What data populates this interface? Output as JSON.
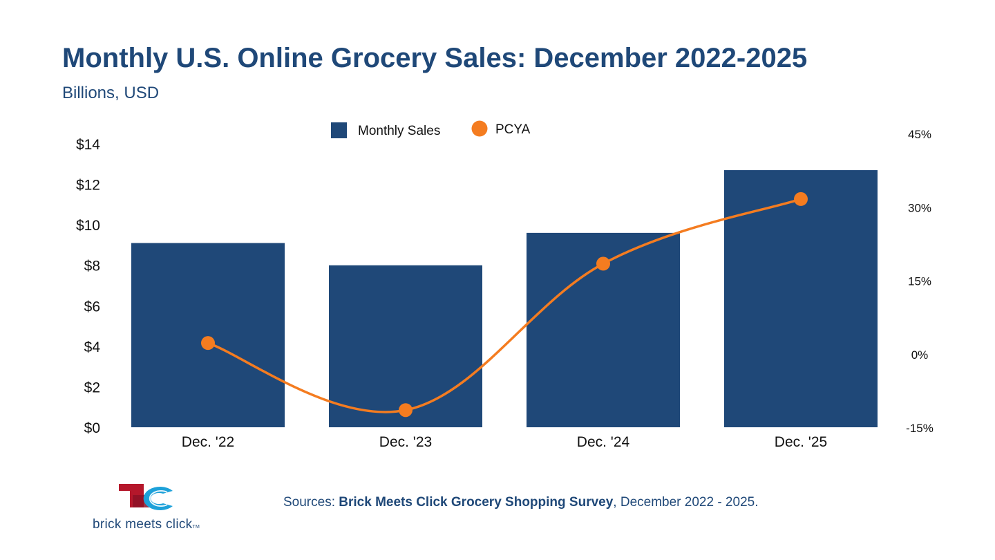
{
  "title": "Monthly U.S. Online Grocery Sales: December 2022-2025",
  "subtitle": "Billions, USD",
  "colors": {
    "title": "#1f4878",
    "bars": "#1f4878",
    "line": "#f47c20",
    "logo_red": "#b5172b",
    "logo_blue": "#1da1d9"
  },
  "chart_data": {
    "type": "bar",
    "categories": [
      "Dec. '22",
      "Dec. '23",
      "Dec. '24",
      "Dec. '25"
    ],
    "series": [
      {
        "name": "Monthly Sales",
        "type": "bar",
        "axis": "left",
        "values": [
          9.1,
          8.0,
          9.6,
          12.7
        ]
      },
      {
        "name": "PCYA",
        "type": "line",
        "axis": "right",
        "values": [
          2.2,
          -11.5,
          18.4,
          31.6
        ]
      }
    ],
    "left_axis": {
      "ylim": [
        0,
        14
      ],
      "ticks": [
        0,
        2,
        4,
        6,
        8,
        10,
        12,
        14
      ],
      "tick_labels": [
        "$0",
        "$2",
        "$4",
        "$6",
        "$8",
        "$10",
        "$12",
        "$14"
      ]
    },
    "right_axis": {
      "ylim": [
        -15,
        45
      ],
      "ticks": [
        -15,
        0,
        15,
        30,
        45
      ],
      "tick_labels": [
        "-15%",
        "0%",
        "15%",
        "30%",
        "45%"
      ]
    },
    "legend": {
      "placement": "top-center",
      "entries": [
        "Monthly Sales",
        "PCYA"
      ]
    },
    "grid": false
  },
  "footer": {
    "prefix": "Sources: ",
    "source_name": "Brick Meets Click Grocery Shopping Survey",
    "suffix": ", December 2022 - 2025."
  },
  "logo": {
    "text": "brick meets click",
    "tm": "TM"
  }
}
